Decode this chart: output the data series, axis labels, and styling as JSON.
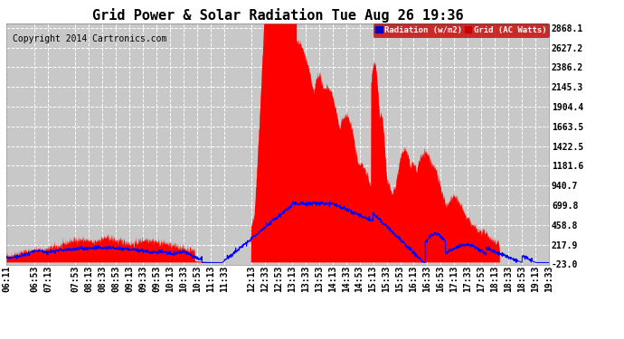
{
  "title": "Grid Power & Solar Radiation Tue Aug 26 19:36",
  "copyright": "Copyright 2014 Cartronics.com",
  "yticks": [
    -23.0,
    217.9,
    458.8,
    699.8,
    940.7,
    1181.6,
    1422.5,
    1663.5,
    1904.4,
    2145.3,
    2386.2,
    2627.2,
    2868.1
  ],
  "ymin": -23.0,
  "ymax": 2868.1,
  "legend_radiation_label": "Radiation (w/m2)",
  "legend_grid_label": "Grid (AC Watts)",
  "legend_radiation_bg": "#0000cc",
  "legend_grid_bg": "#cc0000",
  "bg_color": "#ffffff",
  "plot_bg_color": "#c8c8c8",
  "grid_color": "#ffffff",
  "fill_color": "#ff0000",
  "line_color": "#0000ff",
  "title_fontsize": 11,
  "tick_fontsize": 7,
  "copyright_fontsize": 7,
  "xtick_labels": [
    "06:11",
    "06:53",
    "07:13",
    "07:53",
    "08:13",
    "08:33",
    "08:53",
    "09:13",
    "09:33",
    "09:53",
    "10:13",
    "10:33",
    "10:53",
    "11:13",
    "11:33",
    "12:13",
    "12:33",
    "12:53",
    "13:13",
    "13:33",
    "13:53",
    "14:13",
    "14:33",
    "14:53",
    "15:13",
    "15:33",
    "15:53",
    "16:13",
    "16:33",
    "16:53",
    "17:13",
    "17:33",
    "17:53",
    "18:13",
    "18:33",
    "18:53",
    "19:13",
    "19:33"
  ]
}
